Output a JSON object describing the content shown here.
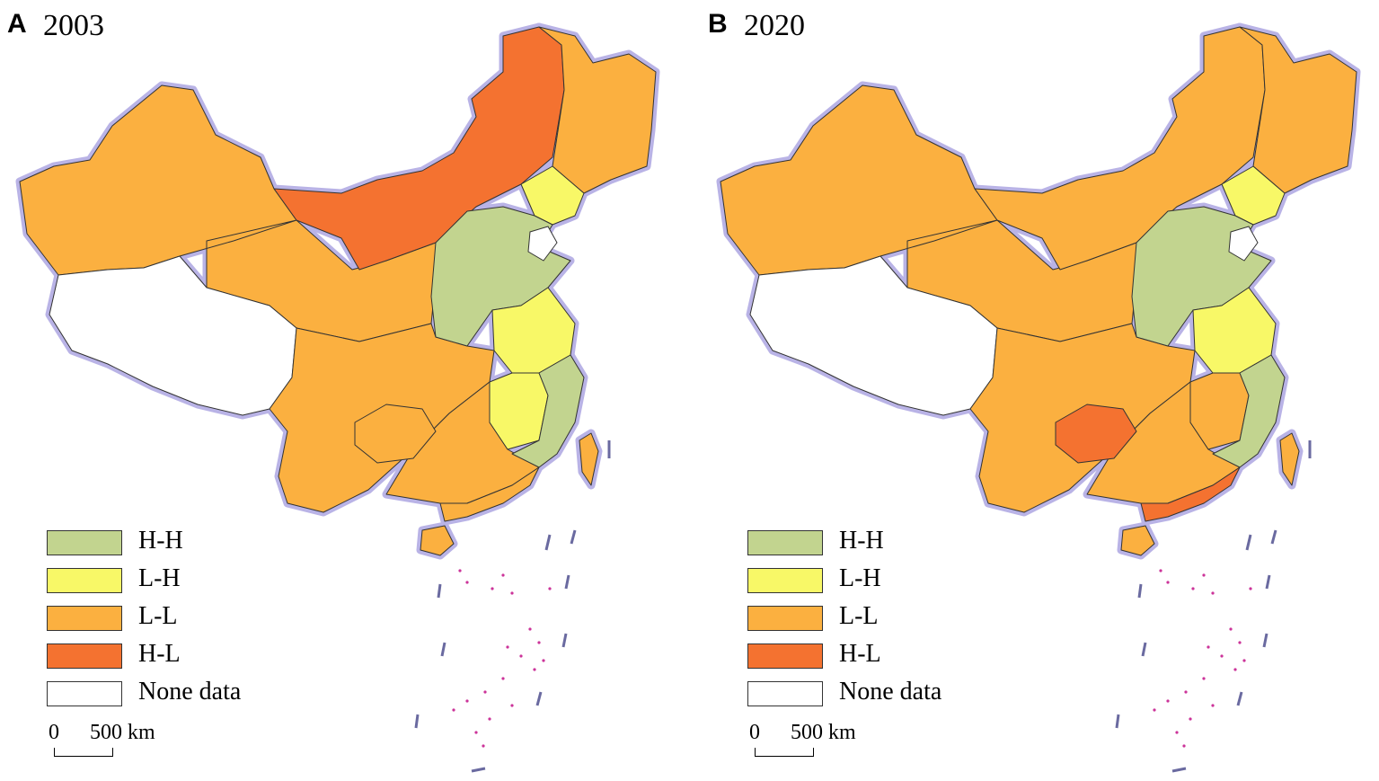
{
  "panels": [
    {
      "label": "A",
      "year": "2003"
    },
    {
      "label": "B",
      "year": "2020"
    }
  ],
  "legend": [
    {
      "label": "H-H",
      "color": "#c2d48f"
    },
    {
      "label": "L-H",
      "color": "#f8f867"
    },
    {
      "label": "L-L",
      "color": "#fbb040"
    },
    {
      "label": "H-L",
      "color": "#f47230"
    },
    {
      "label": "None data",
      "color": "#ffffff"
    }
  ],
  "scale": {
    "zero": "0",
    "distance": "500 km"
  },
  "colors": {
    "border": "#333333",
    "coast_glow": "#b9b3e6",
    "islands": "#cc3399",
    "water": "#5fb7d8"
  },
  "regions": {
    "A": {
      "northwest": "L-L",
      "tibet": "None data",
      "inner_mongolia": "H-L",
      "northeast": "L-L",
      "liaoning": "L-H",
      "north_china": "H-H",
      "central_east": "L-H",
      "jiangxi": "L-H",
      "fujian_zhejiang": "H-H",
      "southwest": "L-L",
      "south": "L-L",
      "guizhou": "L-L",
      "guangdong": "L-L",
      "hainan": "L-L",
      "taiwan": "L-L"
    },
    "B": {
      "northwest": "L-L",
      "tibet": "None data",
      "inner_mongolia": "L-L",
      "northeast": "L-L",
      "liaoning": "L-H",
      "north_china": "H-H",
      "central_east": "L-H",
      "jiangxi": "L-L",
      "fujian_zhejiang": "H-H",
      "southwest": "L-L",
      "south": "L-L",
      "guizhou": "H-L",
      "guangdong": "H-L",
      "hainan": "L-L",
      "taiwan": "L-L"
    }
  }
}
